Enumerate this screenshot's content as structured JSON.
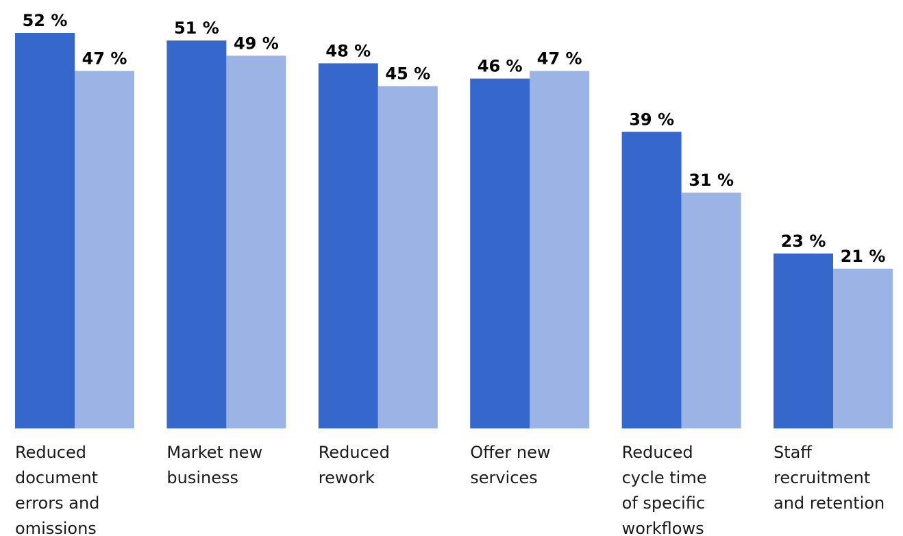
{
  "chart_data": {
    "type": "bar",
    "categories": [
      [
        "Reduced",
        "document",
        "errors and",
        "omissions"
      ],
      [
        "Market new",
        "business"
      ],
      [
        "Reduced",
        "rework"
      ],
      [
        "Offer new",
        "services"
      ],
      [
        "Reduced",
        "cycle time",
        "of specific",
        "workflows"
      ],
      [
        "Staff",
        "recruitment",
        "and retention"
      ]
    ],
    "series": [
      {
        "color": "#3667cb",
        "values": [
          52,
          51,
          48,
          46,
          39,
          23
        ],
        "labels": [
          "52 %",
          "51 %",
          "48 %",
          "46 %",
          "39 %",
          "23 %"
        ]
      },
      {
        "color": "#9bb4e5",
        "values": [
          47,
          49,
          45,
          47,
          31,
          21
        ],
        "labels": [
          "47 %",
          "49 %",
          "45 %",
          "47 %",
          "31 %",
          "21 %"
        ]
      }
    ],
    "ylim": [
      0,
      52
    ],
    "grid": false,
    "legend": "none",
    "xlabel": "",
    "ylabel": "",
    "title": ""
  }
}
